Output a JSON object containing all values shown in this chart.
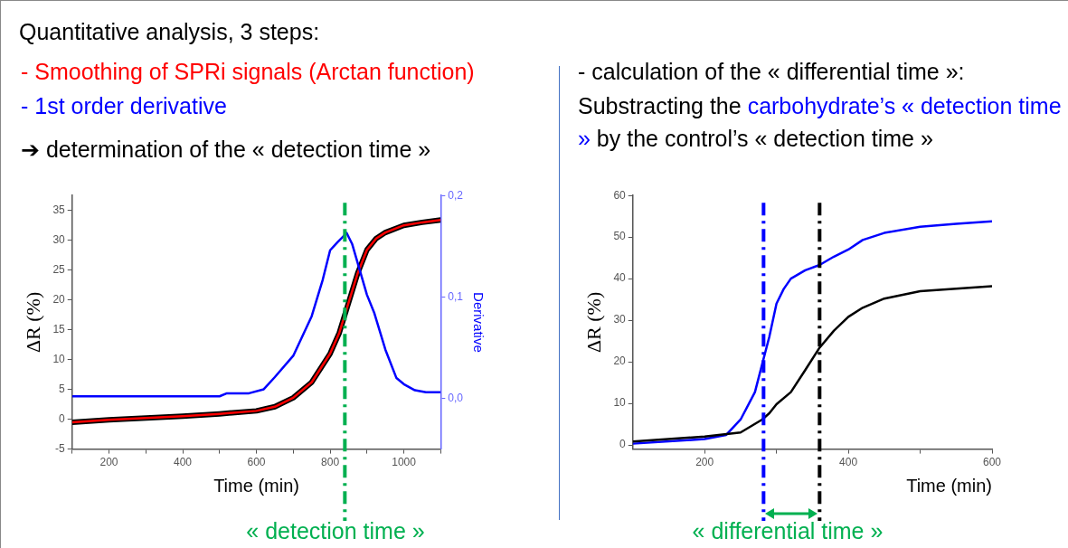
{
  "chart_data": [
    {
      "type": "line",
      "title": "Quantitative analysis, 3 steps:",
      "annotations": [
        "-   Smoothing of SPRi signals (Arctan function)",
        "-   1st order derivative",
        "➔ determination of the « detection time »",
        "« detection time »"
      ],
      "xlabel": "Time (min)",
      "ylabel": "ΔR (%)",
      "y2label": "Derivative",
      "xlim": [
        100,
        1100
      ],
      "xticks": [
        {
          "value": 100,
          "label": null
        },
        200,
        {
          "value": 300,
          "label": null
        },
        400,
        {
          "value": 500,
          "label": null
        },
        600,
        {
          "value": 700,
          "label": null
        },
        800,
        {
          "value": 900,
          "label": null
        },
        1000,
        {
          "value": 1100,
          "label": null
        }
      ],
      "ylim": [
        -5,
        37.5
      ],
      "yticks": [
        -5,
        0,
        5,
        10,
        15,
        20,
        25,
        30,
        35
      ],
      "y2lim": [
        -0.05,
        0.2
      ],
      "y2ticks": [
        {
          "value": 0,
          "label": "0,0"
        },
        {
          "value": 0.1,
          "label": "0,1"
        },
        {
          "value": 0.2,
          "label": "0,2"
        }
      ],
      "series": [
        {
          "color": "#000000",
          "x": [
            100,
            200,
            300,
            400,
            500,
            600,
            650,
            700,
            750,
            800,
            825,
            850,
            875,
            900,
            925,
            950,
            1000,
            1050,
            1100
          ],
          "values": [
            -0.5,
            -0.1,
            0.2,
            0.5,
            0.9,
            1.4,
            2.1,
            3.6,
            6.2,
            11,
            14.5,
            19.5,
            24.5,
            28.4,
            30.3,
            31.3,
            32.5,
            33,
            33.4
          ]
        },
        {
          "color": "#ff0000",
          "x": [
            100,
            200,
            300,
            400,
            500,
            600,
            650,
            700,
            750,
            800,
            825,
            850,
            875,
            900,
            925,
            950,
            1000,
            1050,
            1100
          ],
          "values": [
            -0.5,
            -0.1,
            0.2,
            0.5,
            0.9,
            1.4,
            2.1,
            3.6,
            6.2,
            11,
            14.5,
            19.5,
            24.5,
            28.4,
            30.3,
            31.3,
            32.5,
            33,
            33.4
          ]
        },
        {
          "color": "#0000ff",
          "axis": "y2",
          "x": [
            100,
            200,
            300,
            400,
            500,
            520,
            580,
            620,
            650,
            700,
            750,
            780,
            800,
            820,
            845,
            860,
            880,
            900,
            920,
            950,
            980,
            1000,
            1030,
            1060,
            1100
          ],
          "values": [
            0.002,
            0.002,
            0.002,
            0.002,
            0.002,
            0.005,
            0.005,
            0.009,
            0.021,
            0.042,
            0.081,
            0.117,
            0.146,
            0.154,
            0.163,
            0.152,
            0.127,
            0.102,
            0.084,
            0.048,
            0.02,
            0.014,
            0.008,
            0.006,
            0.006
          ]
        }
      ],
      "ref_lines": [
        {
          "axis": "x",
          "value": 840,
          "color": "#00b050",
          "line_style": "dashdot"
        }
      ],
      "grid": false,
      "legend": false,
      "marker": "none"
    },
    {
      "type": "line",
      "annotations": [
        "-   calculation of the « differential time »:",
        "Substracting the ",
        "carbohydrate’s « detection time »",
        " by the control’s « detection time »",
        "« differential time »"
      ],
      "xlabel": "Time (min)",
      "ylabel": "ΔR (%)",
      "xlim": [
        100,
        600
      ],
      "xticks": [
        200,
        {
          "value": 300,
          "label": null
        },
        400,
        {
          "value": 500,
          "label": null
        },
        600
      ],
      "ylim": [
        -1,
        60
      ],
      "yticks": [
        0,
        10,
        20,
        30,
        40,
        50,
        60
      ],
      "series": [
        {
          "color": "#0000ff",
          "x": [
            100,
            200,
            230,
            250,
            270,
            280,
            290,
            300,
            310,
            320,
            340,
            360,
            380,
            400,
            420,
            450,
            500,
            550,
            600
          ],
          "values": [
            0.3,
            1.4,
            2.4,
            6.1,
            12.7,
            19.4,
            26,
            34,
            37.5,
            40,
            42,
            43.3,
            45.3,
            47,
            49.3,
            51,
            52.5,
            53.2,
            53.8
          ]
        },
        {
          "color": "#000000",
          "x": [
            100,
            200,
            250,
            280,
            290,
            300,
            320,
            340,
            360,
            380,
            400,
            420,
            450,
            500,
            550,
            600
          ],
          "values": [
            0.8,
            2,
            3,
            6.1,
            7.6,
            9.8,
            12.7,
            18,
            23.4,
            27.5,
            30.8,
            33,
            35.2,
            37,
            37.6,
            38.2
          ]
        }
      ],
      "ref_lines": [
        {
          "axis": "x",
          "value": 282,
          "color": "#0000ff",
          "line_style": "dashdot"
        },
        {
          "axis": "x",
          "value": 360,
          "color": "#000000",
          "line_style": "dashdot"
        }
      ],
      "grid": false,
      "legend": false,
      "marker": "none"
    }
  ]
}
